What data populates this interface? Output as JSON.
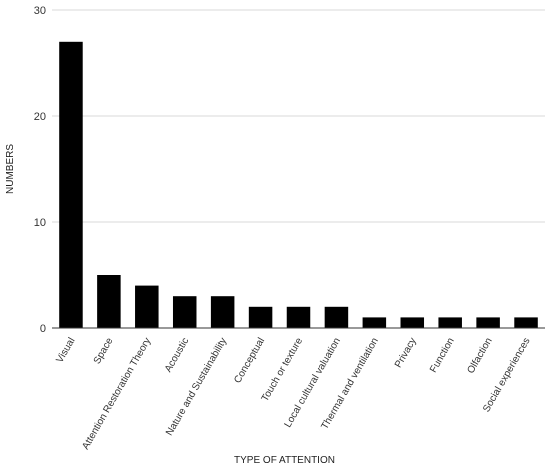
{
  "chart_data": {
    "type": "bar",
    "title": "",
    "xlabel": "TYPE OF ATTENTION",
    "ylabel": "NUMBERS",
    "ylim": [
      0,
      30
    ],
    "yticks": [
      0,
      10,
      20,
      30
    ],
    "grid": true,
    "bar_color": "#000000",
    "grid_color": "#d9d9d9",
    "categories": [
      "Visual",
      "Space",
      "Attention Restoration Theory",
      "Acoustic",
      "Nature and Sustainability",
      "Conceptual",
      "Touch or texture",
      "Local cultural valuation",
      "Thermal and ventilation",
      "Privacy",
      "Function",
      "Olfaction",
      "Social experiences"
    ],
    "values": [
      27,
      5,
      4,
      3,
      3,
      2,
      2,
      2,
      1,
      1,
      1,
      1,
      1
    ]
  }
}
